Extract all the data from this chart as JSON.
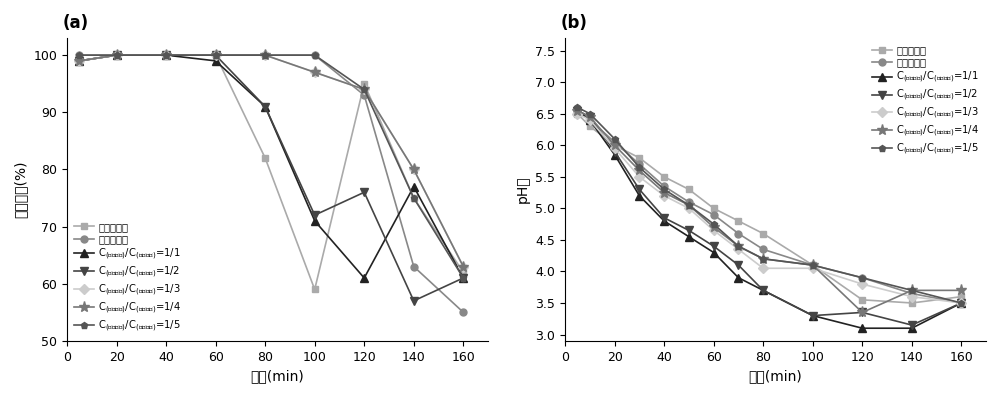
{
  "panel_a": {
    "title": "(a)",
    "xlabel": "时间(min)",
    "ylabel": "脱硫效率(%)",
    "xlim": [
      0,
      170
    ],
    "ylim": [
      50,
      103
    ],
    "yticks": [
      50,
      60,
      70,
      80,
      90,
      100
    ],
    "xticks": [
      0,
      20,
      40,
      60,
      80,
      100,
      120,
      140,
      160
    ]
  },
  "panel_b": {
    "title": "(b)",
    "xlabel": "时间(min)",
    "ylabel": "pH値",
    "xlim": [
      0,
      170
    ],
    "ylim": [
      2.9,
      7.7
    ],
    "yticks": [
      3.0,
      3.5,
      4.0,
      4.5,
      5.0,
      5.5,
      6.0,
      6.5,
      7.0,
      7.5
    ],
    "xticks": [
      0,
      20,
      40,
      60,
      80,
      100,
      120,
      140,
      160
    ]
  },
  "legend_labels": [
    "全无机组分",
    "全有机组分",
    "C_(无机组分)/C_(有机组分)=1/1",
    "C_(无机组分)/C_(有机组分)=1/2",
    "C_(无机组分)/C_(有机组分)=1/3",
    "C_(无机组分)/C_(有机组分)=1/4",
    "C_(无机组分)/C_(有机组分)=1/5"
  ],
  "colors": [
    "#aaaaaa",
    "#888888",
    "#222222",
    "#444444",
    "#cccccc",
    "#777777",
    "#555555"
  ],
  "markers": [
    "s",
    "o",
    "^",
    "v",
    "D",
    "*",
    "p"
  ],
  "marker_sizes": [
    5,
    5,
    6,
    6,
    5,
    8,
    5
  ],
  "series_a": [
    {
      "x": [
        5,
        20,
        40,
        60,
        80,
        100,
        120,
        140,
        160
      ],
      "y": [
        99,
        100,
        100,
        100,
        82,
        59,
        95,
        75,
        62
      ]
    },
    {
      "x": [
        5,
        20,
        40,
        60,
        80,
        100,
        120,
        140,
        160
      ],
      "y": [
        100,
        100,
        100,
        100,
        100,
        100,
        93,
        63,
        55
      ]
    },
    {
      "x": [
        5,
        20,
        40,
        60,
        80,
        100,
        120,
        140,
        160
      ],
      "y": [
        99,
        100,
        100,
        99,
        91,
        71,
        61,
        77,
        61
      ]
    },
    {
      "x": [
        5,
        20,
        40,
        60,
        80,
        100,
        120,
        140,
        160
      ],
      "y": [
        99,
        100,
        100,
        100,
        91,
        72,
        76,
        57,
        61
      ]
    },
    {
      "x": [
        5,
        20,
        40,
        60,
        80,
        100,
        120,
        140,
        160
      ],
      "y": [
        99,
        100,
        100,
        100,
        100,
        97,
        94,
        80,
        63
      ]
    },
    {
      "x": [
        5,
        20,
        40,
        60,
        80,
        100,
        120,
        140,
        160
      ],
      "y": [
        99,
        100,
        100,
        100,
        100,
        97,
        94,
        80,
        63
      ]
    },
    {
      "x": [
        5,
        20,
        40,
        60,
        80,
        100,
        120,
        140,
        160
      ],
      "y": [
        100,
        100,
        100,
        100,
        100,
        100,
        94,
        75,
        61
      ]
    }
  ],
  "series_b": [
    {
      "x": [
        5,
        10,
        20,
        30,
        40,
        50,
        60,
        70,
        80,
        100,
        120,
        140,
        160
      ],
      "y": [
        6.5,
        6.3,
        6.0,
        5.8,
        5.5,
        5.3,
        5.0,
        4.8,
        4.6,
        4.1,
        3.55,
        3.5,
        3.6
      ]
    },
    {
      "x": [
        5,
        10,
        20,
        30,
        40,
        50,
        60,
        70,
        80,
        100,
        120,
        140,
        160
      ],
      "y": [
        6.55,
        6.4,
        6.05,
        5.7,
        5.35,
        5.1,
        4.9,
        4.6,
        4.35,
        4.1,
        3.9,
        3.65,
        3.5
      ]
    },
    {
      "x": [
        5,
        10,
        20,
        30,
        40,
        50,
        60,
        70,
        80,
        100,
        120,
        140,
        160
      ],
      "y": [
        6.55,
        6.4,
        5.85,
        5.2,
        4.8,
        4.55,
        4.3,
        3.9,
        3.7,
        3.3,
        3.1,
        3.1,
        3.5
      ]
    },
    {
      "x": [
        5,
        10,
        20,
        30,
        40,
        50,
        60,
        70,
        80,
        100,
        120,
        140,
        160
      ],
      "y": [
        6.55,
        6.45,
        5.9,
        5.3,
        4.85,
        4.65,
        4.4,
        4.1,
        3.7,
        3.3,
        3.35,
        3.15,
        3.5
      ]
    },
    {
      "x": [
        5,
        10,
        20,
        30,
        40,
        50,
        60,
        70,
        80,
        100,
        120,
        140,
        160
      ],
      "y": [
        6.5,
        6.4,
        5.95,
        5.5,
        5.2,
        5.0,
        4.65,
        4.35,
        4.05,
        4.05,
        3.8,
        3.6,
        3.5
      ]
    },
    {
      "x": [
        5,
        10,
        20,
        30,
        40,
        50,
        60,
        70,
        80,
        100,
        120,
        140,
        160
      ],
      "y": [
        6.55,
        6.45,
        6.0,
        5.6,
        5.25,
        5.05,
        4.7,
        4.4,
        4.2,
        4.1,
        3.35,
        3.7,
        3.7
      ]
    },
    {
      "x": [
        5,
        10,
        20,
        30,
        40,
        50,
        60,
        70,
        80,
        100,
        120,
        140,
        160
      ],
      "y": [
        6.6,
        6.5,
        6.1,
        5.65,
        5.3,
        5.05,
        4.75,
        4.4,
        4.2,
        4.1,
        3.9,
        3.7,
        3.5
      ]
    }
  ],
  "font_size": 9,
  "label_font_size": 10,
  "tick_font_size": 9
}
